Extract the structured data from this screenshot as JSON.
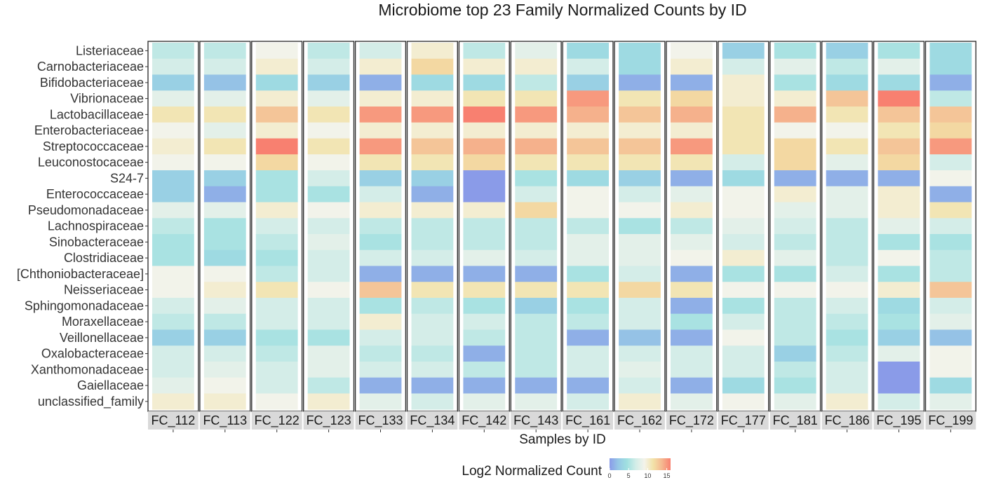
{
  "chart_data": {
    "type": "heatmap",
    "title": "Microbiome top 23 Family Normalized Counts by ID",
    "xlabel": "Samples by ID",
    "legend_title": "Log2 Normalized Count",
    "legend_ticks": [
      "0",
      "5",
      "10",
      "15"
    ],
    "legend_position": "bottom",
    "color_range": [
      0,
      16
    ],
    "color_scale": [
      "#8a9be8",
      "#96c8e6",
      "#a0e0e0",
      "#d2ede8",
      "#f4f3ea",
      "#f2e2a8",
      "#f5b890",
      "#f88070"
    ],
    "families": [
      "Listeriaceae",
      "Carnobacteriaceae",
      "Bifidobacteriaceae",
      "Vibrionaceae",
      "Lactobacillaceae",
      "Enterobacteriaceae",
      "Streptococcaceae",
      "Leuconostocaceae",
      "S24-7",
      "Enterococcaceae",
      "Pseudomonadaceae",
      "Lachnospiraceae",
      "Sinobacteraceae",
      "Clostridiaceae",
      "[Chthoniobacteraceae]",
      "Neisseriaceae",
      "Sphingomonadaceae",
      "Moraxellaceae",
      "Veillonellaceae",
      "Oxalobacteraceae",
      "Xanthomonadaceae",
      "Gaiellaceae",
      "unclassified_family"
    ],
    "samples": [
      "FC_112",
      "FC_113",
      "FC_122",
      "FC_123",
      "FC_133",
      "FC_134",
      "FC_142",
      "FC_143",
      "FC_161",
      "FC_162",
      "FC_172",
      "FC_177",
      "FC_181",
      "FC_186",
      "FC_195",
      "FC_199"
    ],
    "values": [
      [
        6,
        6,
        9,
        6,
        7,
        10,
        6,
        8,
        4,
        4,
        9,
        3,
        5,
        3,
        5,
        4
      ],
      [
        7,
        7,
        10,
        7,
        10,
        12,
        10,
        10,
        7,
        4,
        10,
        7,
        8,
        6,
        8,
        4
      ],
      [
        3,
        2,
        4,
        3,
        1,
        4,
        4,
        6,
        3,
        1,
        1,
        10,
        5,
        4,
        4,
        1
      ],
      [
        8,
        8,
        10,
        8,
        10,
        10,
        11,
        11,
        15,
        11,
        12,
        10,
        10,
        13,
        16,
        6
      ],
      [
        11,
        11,
        13,
        11,
        15,
        15,
        16,
        15,
        14,
        13,
        14,
        11,
        14,
        11,
        13,
        13
      ],
      [
        9,
        8,
        10,
        9,
        10,
        10,
        10,
        10,
        10,
        10,
        10,
        11,
        9,
        9,
        11,
        12
      ],
      [
        10,
        11,
        16,
        11,
        15,
        13,
        14,
        14,
        13,
        13,
        15,
        11,
        12,
        11,
        13,
        15
      ],
      [
        9,
        9,
        12,
        9,
        11,
        11,
        12,
        11,
        11,
        11,
        11,
        7,
        12,
        8,
        12,
        7
      ],
      [
        3,
        3,
        5,
        7,
        3,
        3,
        0,
        5,
        4,
        3,
        1,
        4,
        1,
        1,
        1,
        9
      ],
      [
        3,
        1,
        5,
        5,
        7,
        1,
        0,
        7,
        9,
        7,
        8,
        9,
        10,
        8,
        10,
        1
      ],
      [
        8,
        8,
        10,
        9,
        10,
        10,
        10,
        12,
        9,
        9,
        10,
        9,
        8,
        8,
        10,
        11
      ],
      [
        6,
        5,
        7,
        7,
        6,
        6,
        6,
        6,
        6,
        5,
        6,
        8,
        7,
        6,
        8,
        7
      ],
      [
        5,
        5,
        6,
        8,
        5,
        6,
        6,
        6,
        8,
        8,
        8,
        7,
        6,
        6,
        5,
        5
      ],
      [
        5,
        4,
        5,
        7,
        7,
        7,
        8,
        7,
        8,
        8,
        9,
        10,
        8,
        6,
        9,
        6
      ],
      [
        9,
        9,
        6,
        7,
        1,
        1,
        1,
        1,
        5,
        7,
        1,
        5,
        5,
        7,
        5,
        6
      ],
      [
        9,
        10,
        11,
        9,
        13,
        11,
        11,
        11,
        11,
        12,
        11,
        9,
        9,
        9,
        10,
        13
      ],
      [
        7,
        8,
        7,
        7,
        5,
        6,
        5,
        3,
        5,
        7,
        1,
        5,
        6,
        7,
        4,
        7
      ],
      [
        6,
        6,
        7,
        7,
        10,
        7,
        7,
        6,
        6,
        7,
        5,
        7,
        6,
        6,
        5,
        8
      ],
      [
        3,
        3,
        5,
        5,
        7,
        7,
        6,
        6,
        1,
        2,
        1,
        9,
        6,
        5,
        3,
        2
      ],
      [
        7,
        7,
        6,
        8,
        6,
        6,
        1,
        6,
        7,
        7,
        7,
        7,
        3,
        6,
        8,
        9
      ],
      [
        7,
        8,
        7,
        8,
        7,
        7,
        6,
        6,
        7,
        8,
        7,
        7,
        6,
        7,
        0,
        9
      ],
      [
        8,
        9,
        7,
        6,
        1,
        1,
        1,
        1,
        1,
        7,
        1,
        4,
        5,
        7,
        0,
        4
      ],
      [
        10,
        10,
        9,
        10,
        8,
        7,
        8,
        8,
        7,
        10,
        8,
        9,
        8,
        10,
        7,
        8
      ]
    ]
  }
}
